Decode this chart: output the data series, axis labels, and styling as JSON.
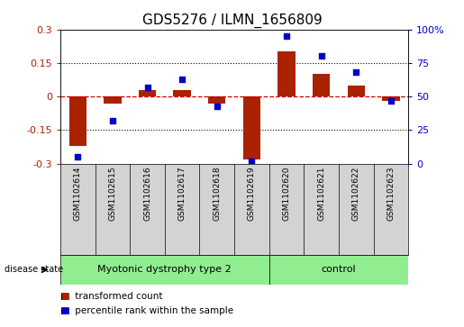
{
  "title": "GDS5276 / ILMN_1656809",
  "samples": [
    "GSM1102614",
    "GSM1102615",
    "GSM1102616",
    "GSM1102617",
    "GSM1102618",
    "GSM1102619",
    "GSM1102620",
    "GSM1102621",
    "GSM1102622",
    "GSM1102623"
  ],
  "red_bars": [
    -0.22,
    -0.03,
    0.03,
    0.03,
    -0.03,
    -0.28,
    0.2,
    0.1,
    0.05,
    -0.02
  ],
  "blue_dots": [
    5,
    32,
    57,
    63,
    43,
    2,
    95,
    80,
    68,
    47
  ],
  "ylim_left": [
    -0.3,
    0.3
  ],
  "ylim_right": [
    0,
    100
  ],
  "yticks_left": [
    -0.3,
    -0.15,
    0.0,
    0.15,
    0.3
  ],
  "yticks_right": [
    0,
    25,
    50,
    75,
    100
  ],
  "ytick_labels_left": [
    "-0.3",
    "-0.15",
    "0",
    "0.15",
    "0.3"
  ],
  "ytick_labels_right": [
    "0",
    "25",
    "50",
    "75",
    "100%"
  ],
  "group1_label": "Myotonic dystrophy type 2",
  "group1_n": 6,
  "group2_label": "control",
  "group2_n": 4,
  "group_color": "#90EE90",
  "disease_state_label": "disease state",
  "bar_color": "#AA2200",
  "dot_color": "#0000CC",
  "hline_color": "#CC0000",
  "dotted_color": "#000000",
  "bg_color": "#FFFFFF",
  "legend_red_label": "transformed count",
  "legend_blue_label": "percentile rank within the sample",
  "title_fontsize": 11,
  "tick_fontsize": 8,
  "label_fontsize": 8,
  "sample_label_fontsize": 6.5,
  "group_bg_color": "#D3D3D3",
  "group_fontsize": 8,
  "legend_fontsize": 7.5
}
